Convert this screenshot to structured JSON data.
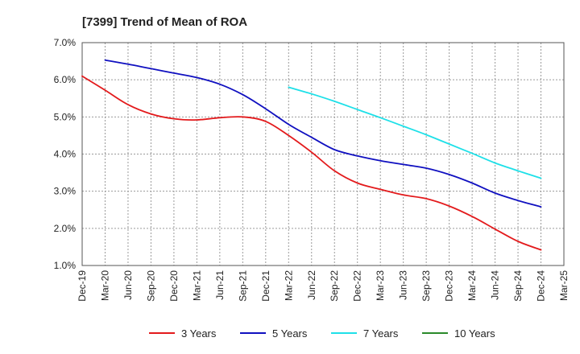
{
  "chart_data": {
    "type": "line",
    "title": "[7399]  Trend of Mean of ROA",
    "xlabel": "",
    "ylabel": "",
    "x": [
      "Dec-19",
      "Mar-20",
      "Jun-20",
      "Sep-20",
      "Dec-20",
      "Mar-21",
      "Jun-21",
      "Sep-21",
      "Dec-21",
      "Mar-22",
      "Jun-22",
      "Sep-22",
      "Dec-22",
      "Mar-23",
      "Jun-23",
      "Sep-23",
      "Dec-23",
      "Mar-24",
      "Jun-24",
      "Sep-24",
      "Dec-24",
      "Mar-25"
    ],
    "ylim": [
      1.0,
      7.0
    ],
    "yticks": [
      1.0,
      2.0,
      3.0,
      4.0,
      5.0,
      6.0,
      7.0
    ],
    "ytick_labels": [
      "1.0%",
      "2.0%",
      "3.0%",
      "4.0%",
      "5.0%",
      "6.0%",
      "7.0%"
    ],
    "grid": true,
    "legend_position": "bottom",
    "series": [
      {
        "name": "3 Years",
        "color": "#e31a1c",
        "values": [
          6.1,
          5.72,
          5.33,
          5.08,
          4.95,
          4.92,
          4.98,
          5.0,
          4.88,
          4.5,
          4.05,
          3.55,
          3.22,
          3.05,
          2.9,
          2.8,
          2.6,
          2.32,
          1.98,
          1.65,
          1.42,
          null
        ]
      },
      {
        "name": "5 Years",
        "color": "#1010c0",
        "values": [
          null,
          6.53,
          6.42,
          6.3,
          6.18,
          6.06,
          5.88,
          5.6,
          5.22,
          4.8,
          4.45,
          4.12,
          3.95,
          3.82,
          3.72,
          3.62,
          3.45,
          3.22,
          2.95,
          2.75,
          2.58,
          null
        ]
      },
      {
        "name": "7 Years",
        "color": "#1ee0e8",
        "values": [
          null,
          null,
          null,
          null,
          null,
          null,
          null,
          null,
          null,
          5.8,
          5.62,
          5.42,
          5.2,
          4.98,
          4.75,
          4.52,
          4.27,
          4.02,
          3.76,
          3.55,
          3.35,
          null
        ]
      },
      {
        "name": "10 Years",
        "color": "#2a8a2a",
        "values": [
          null,
          null,
          null,
          null,
          null,
          null,
          null,
          null,
          null,
          null,
          null,
          null,
          null,
          null,
          null,
          null,
          null,
          null,
          null,
          null,
          null,
          null
        ]
      }
    ]
  }
}
